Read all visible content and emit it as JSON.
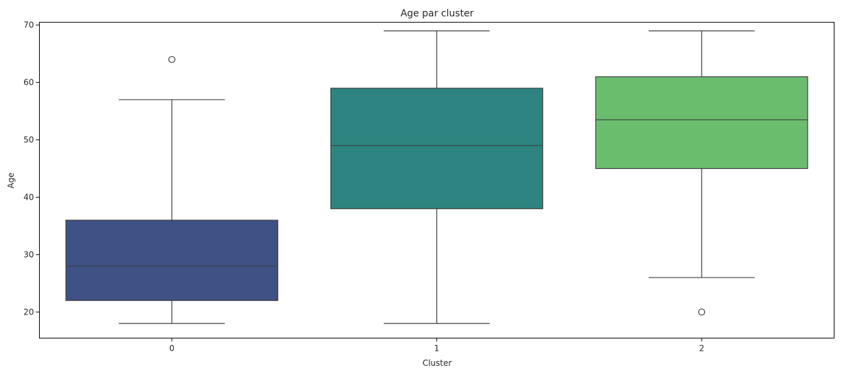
{
  "chart_data": {
    "type": "box",
    "title": "Age par cluster",
    "xlabel": "Cluster",
    "ylabel": "Age",
    "categories": [
      "0",
      "1",
      "2"
    ],
    "ylim": [
      15.45,
      70.5
    ],
    "yticks": [
      20,
      30,
      40,
      50,
      60,
      70
    ],
    "grid": false,
    "boxes": [
      {
        "category": "0",
        "whisker_low": 18,
        "q1": 22,
        "median": 28,
        "q3": 36,
        "whisker_high": 57,
        "outliers": [
          64
        ],
        "color": "#3e5286"
      },
      {
        "category": "1",
        "whisker_low": 18,
        "q1": 38,
        "median": 49,
        "q3": 59,
        "whisker_high": 69,
        "outliers": [],
        "color": "#2d8480"
      },
      {
        "category": "2",
        "whisker_low": 26,
        "q1": 45,
        "median": 53.5,
        "q3": 61,
        "whisker_high": 69,
        "outliers": [
          20
        ],
        "color": "#6bbd6e"
      }
    ]
  }
}
